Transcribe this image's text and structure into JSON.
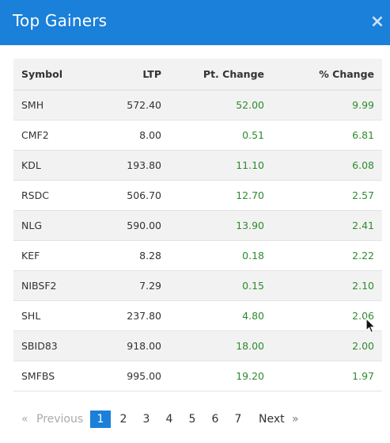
{
  "dialog": {
    "title": "Top Gainers",
    "close_label": "×"
  },
  "table": {
    "headers": {
      "symbol": "Symbol",
      "ltp": "LTP",
      "pt_change": "Pt. Change",
      "pct_change": "% Change"
    },
    "rows": [
      {
        "symbol": "SMH",
        "ltp": "572.40",
        "pt_change": "52.00",
        "pct_change": "9.99"
      },
      {
        "symbol": "CMF2",
        "ltp": "8.00",
        "pt_change": "0.51",
        "pct_change": "6.81"
      },
      {
        "symbol": "KDL",
        "ltp": "193.80",
        "pt_change": "11.10",
        "pct_change": "6.08"
      },
      {
        "symbol": "RSDC",
        "ltp": "506.70",
        "pt_change": "12.70",
        "pct_change": "2.57"
      },
      {
        "symbol": "NLG",
        "ltp": "590.00",
        "pt_change": "13.90",
        "pct_change": "2.41"
      },
      {
        "symbol": "KEF",
        "ltp": "8.28",
        "pt_change": "0.18",
        "pct_change": "2.22"
      },
      {
        "symbol": "NIBSF2",
        "ltp": "7.29",
        "pt_change": "0.15",
        "pct_change": "2.10"
      },
      {
        "symbol": "SHL",
        "ltp": "237.80",
        "pt_change": "4.80",
        "pct_change": "2.06"
      },
      {
        "symbol": "SBID83",
        "ltp": "918.00",
        "pt_change": "18.00",
        "pct_change": "2.00"
      },
      {
        "symbol": "SMFBS",
        "ltp": "995.00",
        "pt_change": "19.20",
        "pct_change": "1.97"
      }
    ]
  },
  "pagination": {
    "prev_arrow": "«",
    "prev_label": "Previous",
    "pages": [
      "1",
      "2",
      "3",
      "4",
      "5",
      "6",
      "7"
    ],
    "current_page": "1",
    "next_label": "Next",
    "next_arrow": "»"
  },
  "colors": {
    "header_bg": "#1a80d9",
    "gain": "#2e8b2e",
    "row_stripe": "#f2f2f2"
  },
  "icons": {
    "close": "close-icon",
    "cursor": "mouse-pointer-icon"
  }
}
